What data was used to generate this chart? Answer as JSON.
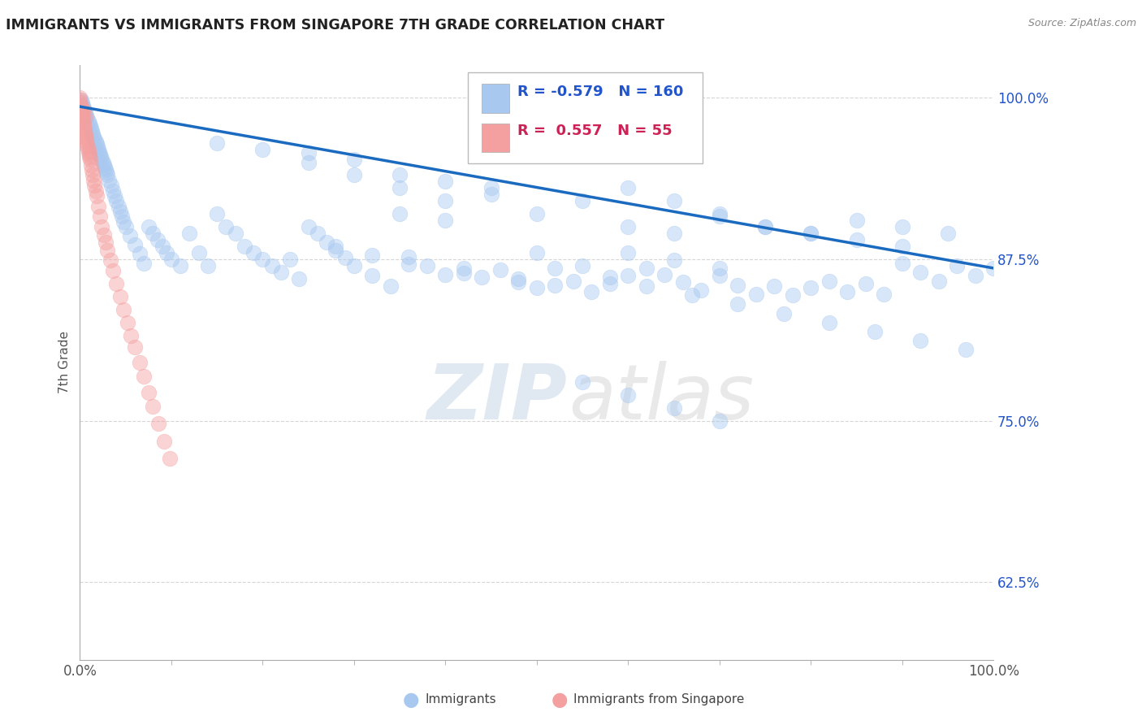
{
  "title": "IMMIGRANTS VS IMMIGRANTS FROM SINGAPORE 7TH GRADE CORRELATION CHART",
  "source_text": "Source: ZipAtlas.com",
  "ylabel": "7th Grade",
  "xlim": [
    0.0,
    1.0
  ],
  "ylim": [
    0.565,
    1.025
  ],
  "y_tick_positions": [
    0.625,
    0.75,
    0.875,
    1.0
  ],
  "y_tick_labels": [
    "62.5%",
    "75.0%",
    "87.5%",
    "100.0%"
  ],
  "x_tick_labels": [
    "0.0%",
    "100.0%"
  ],
  "legend_blue_r": "-0.579",
  "legend_blue_n": "160",
  "legend_pink_r": "0.557",
  "legend_pink_n": "55",
  "blue_color": "#a8c8f0",
  "pink_color": "#f4a0a0",
  "line_color": "#1a6abf",
  "trend_x": [
    0.0,
    1.0
  ],
  "trend_y_start": 0.993,
  "trend_y_end": 0.868,
  "watermark_zip": "ZIP",
  "watermark_atlas": "atlas",
  "scatter_size": 180,
  "scatter_alpha": 0.45,
  "grid_color": "#cccccc",
  "grid_linestyle": "--",
  "grid_alpha": 0.8,
  "blue_scatter_x": [
    0.001,
    0.002,
    0.003,
    0.004,
    0.005,
    0.006,
    0.007,
    0.008,
    0.009,
    0.01,
    0.011,
    0.012,
    0.013,
    0.014,
    0.015,
    0.016,
    0.017,
    0.018,
    0.019,
    0.02,
    0.021,
    0.022,
    0.023,
    0.024,
    0.025,
    0.026,
    0.027,
    0.028,
    0.029,
    0.03,
    0.032,
    0.034,
    0.036,
    0.038,
    0.04,
    0.042,
    0.044,
    0.046,
    0.048,
    0.05,
    0.055,
    0.06,
    0.065,
    0.07,
    0.075,
    0.08,
    0.085,
    0.09,
    0.095,
    0.1,
    0.11,
    0.12,
    0.13,
    0.14,
    0.15,
    0.16,
    0.17,
    0.18,
    0.19,
    0.2,
    0.21,
    0.22,
    0.23,
    0.24,
    0.25,
    0.26,
    0.27,
    0.28,
    0.29,
    0.3,
    0.32,
    0.34,
    0.36,
    0.38,
    0.4,
    0.42,
    0.44,
    0.46,
    0.48,
    0.5,
    0.52,
    0.54,
    0.56,
    0.58,
    0.6,
    0.62,
    0.64,
    0.66,
    0.68,
    0.7,
    0.72,
    0.74,
    0.76,
    0.78,
    0.8,
    0.82,
    0.84,
    0.86,
    0.88,
    0.9,
    0.92,
    0.94,
    0.96,
    0.98,
    1.0,
    0.25,
    0.3,
    0.35,
    0.4,
    0.45,
    0.5,
    0.55,
    0.6,
    0.65,
    0.7,
    0.75,
    0.8,
    0.85,
    0.9,
    0.5,
    0.55,
    0.35,
    0.4,
    0.45,
    0.6,
    0.65,
    0.7,
    0.75,
    0.8,
    0.85,
    0.9,
    0.95,
    0.6,
    0.65,
    0.7,
    0.35,
    0.4,
    0.15,
    0.2,
    0.25,
    0.3,
    0.55,
    0.6,
    0.65,
    0.7,
    0.28,
    0.32,
    0.36,
    0.42,
    0.48,
    0.52,
    0.58,
    0.62,
    0.67,
    0.72,
    0.77,
    0.82,
    0.87,
    0.92,
    0.97
  ],
  "blue_scatter_y": [
    0.998,
    0.996,
    0.994,
    0.992,
    0.99,
    0.988,
    0.986,
    0.984,
    0.982,
    0.98,
    0.978,
    0.976,
    0.974,
    0.972,
    0.97,
    0.968,
    0.966,
    0.964,
    0.962,
    0.96,
    0.958,
    0.956,
    0.954,
    0.952,
    0.95,
    0.948,
    0.946,
    0.944,
    0.942,
    0.94,
    0.936,
    0.932,
    0.928,
    0.924,
    0.92,
    0.916,
    0.912,
    0.908,
    0.904,
    0.9,
    0.893,
    0.886,
    0.879,
    0.872,
    0.9,
    0.895,
    0.89,
    0.885,
    0.88,
    0.875,
    0.87,
    0.895,
    0.88,
    0.87,
    0.91,
    0.9,
    0.895,
    0.885,
    0.88,
    0.875,
    0.87,
    0.865,
    0.875,
    0.86,
    0.9,
    0.895,
    0.888,
    0.882,
    0.876,
    0.87,
    0.862,
    0.854,
    0.877,
    0.87,
    0.863,
    0.868,
    0.861,
    0.867,
    0.86,
    0.853,
    0.855,
    0.858,
    0.85,
    0.856,
    0.862,
    0.868,
    0.863,
    0.857,
    0.851,
    0.862,
    0.855,
    0.848,
    0.854,
    0.847,
    0.853,
    0.858,
    0.85,
    0.856,
    0.848,
    0.872,
    0.865,
    0.858,
    0.87,
    0.862,
    0.868,
    0.95,
    0.94,
    0.93,
    0.92,
    0.93,
    0.91,
    0.92,
    0.93,
    0.92,
    0.91,
    0.9,
    0.895,
    0.89,
    0.885,
    0.88,
    0.87,
    0.94,
    0.935,
    0.925,
    0.9,
    0.895,
    0.908,
    0.9,
    0.895,
    0.905,
    0.9,
    0.895,
    0.88,
    0.874,
    0.868,
    0.91,
    0.905,
    0.965,
    0.96,
    0.957,
    0.952,
    0.78,
    0.77,
    0.76,
    0.75,
    0.885,
    0.878,
    0.871,
    0.864,
    0.857,
    0.868,
    0.861,
    0.854,
    0.847,
    0.84,
    0.833,
    0.826,
    0.819,
    0.812,
    0.805
  ],
  "pink_scatter_x": [
    0.0,
    0.0,
    0.0,
    0.001,
    0.001,
    0.001,
    0.002,
    0.002,
    0.003,
    0.003,
    0.004,
    0.004,
    0.005,
    0.005,
    0.006,
    0.006,
    0.007,
    0.007,
    0.008,
    0.008,
    0.009,
    0.009,
    0.01,
    0.01,
    0.011,
    0.012,
    0.013,
    0.014,
    0.015,
    0.016,
    0.017,
    0.018,
    0.02,
    0.022,
    0.024,
    0.026,
    0.028,
    0.03,
    0.033,
    0.036,
    0.04,
    0.044,
    0.048,
    0.052,
    0.056,
    0.06,
    0.065,
    0.07,
    0.075,
    0.08,
    0.086,
    0.092,
    0.098,
    0.004,
    0.006
  ],
  "pink_scatter_y": [
    1.0,
    0.998,
    0.996,
    0.994,
    0.992,
    0.99,
    0.988,
    0.986,
    0.984,
    0.982,
    0.98,
    0.978,
    0.976,
    0.974,
    0.972,
    0.97,
    0.968,
    0.966,
    0.964,
    0.962,
    0.96,
    0.958,
    0.956,
    0.954,
    0.952,
    0.948,
    0.944,
    0.94,
    0.936,
    0.932,
    0.928,
    0.924,
    0.916,
    0.908,
    0.9,
    0.894,
    0.888,
    0.882,
    0.874,
    0.866,
    0.856,
    0.846,
    0.836,
    0.826,
    0.816,
    0.807,
    0.795,
    0.784,
    0.772,
    0.761,
    0.748,
    0.734,
    0.721,
    0.99,
    0.985
  ]
}
